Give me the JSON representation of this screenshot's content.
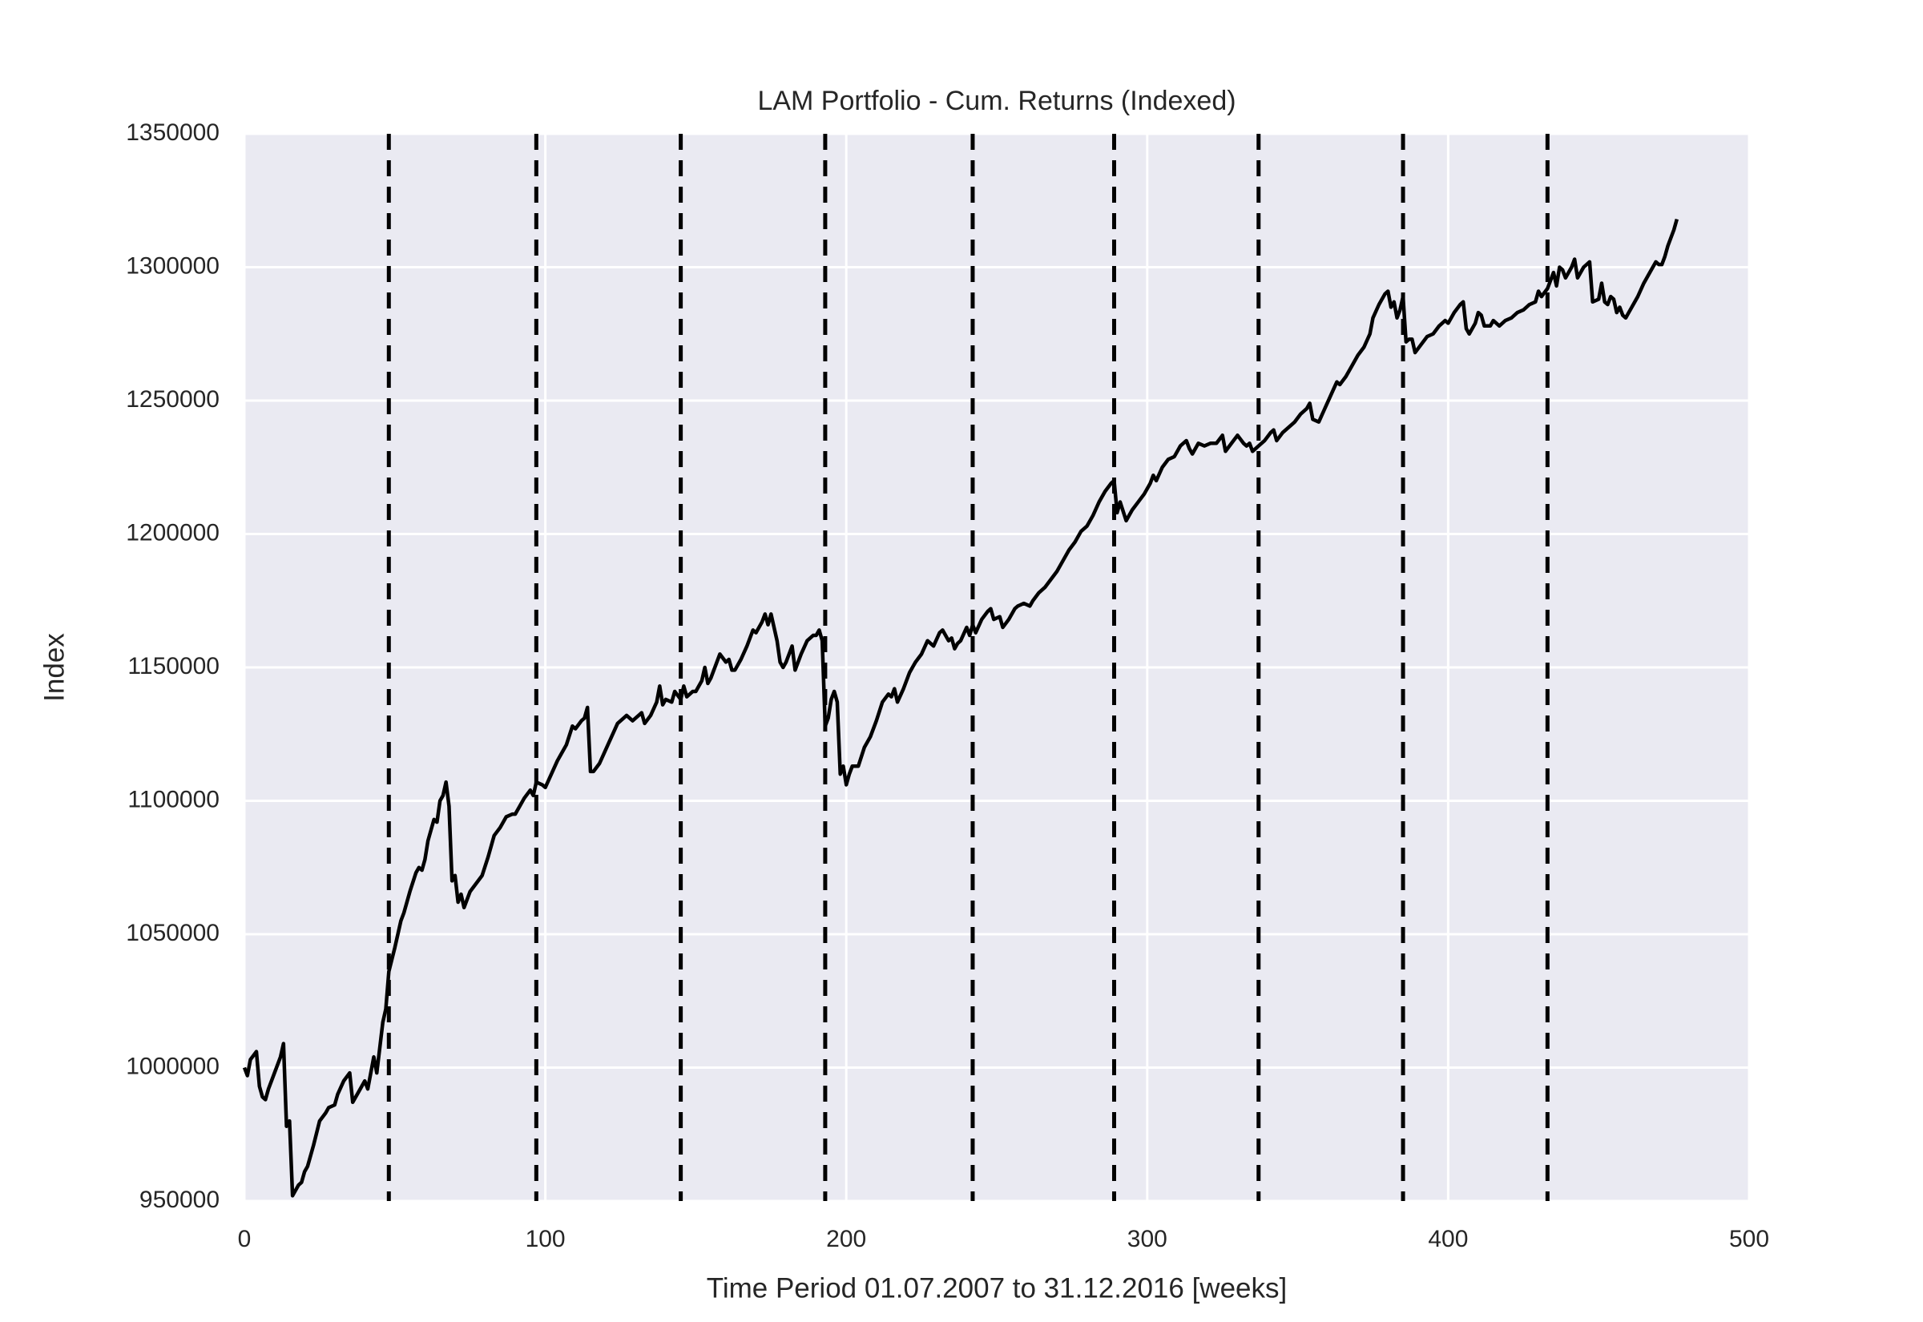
{
  "chart_data": {
    "type": "line",
    "title": "LAM Portfolio - Cum. Returns (Indexed)",
    "x_label": "Time Period 01.07.2007 to 31.12.2016 [weeks]",
    "y_label": "Index",
    "xlim": [
      0,
      500
    ],
    "xticks": [
      0,
      100,
      200,
      300,
      400,
      500
    ],
    "ylim": [
      950000,
      1350000
    ],
    "yticks": [
      950000,
      1000000,
      1050000,
      1100000,
      1150000,
      1200000,
      1250000,
      1300000,
      1350000
    ],
    "grid": true,
    "color": "#000000",
    "vline_color": "#000000",
    "vlines": [
      48,
      97,
      145,
      193,
      242,
      289,
      337,
      385,
      433
    ],
    "x": [
      0,
      1,
      2,
      4,
      5,
      6,
      7,
      8,
      10,
      12,
      13,
      14,
      15,
      16,
      17,
      18,
      19,
      20,
      21,
      23,
      25,
      27,
      28,
      30,
      31,
      33,
      35,
      36,
      38,
      40,
      41,
      43,
      44,
      46,
      47,
      48,
      50,
      52,
      53,
      55,
      57,
      58,
      59,
      60,
      61,
      63,
      64,
      65,
      66,
      67,
      68,
      69,
      70,
      71,
      72,
      73,
      74,
      75,
      77,
      79,
      81,
      83,
      85,
      87,
      89,
      90,
      91,
      93,
      95,
      96,
      97,
      99,
      100,
      102,
      104,
      105,
      107,
      109,
      110,
      112,
      113,
      114,
      115,
      116,
      118,
      120,
      122,
      124,
      126,
      127,
      129,
      131,
      132,
      133,
      135,
      137,
      138,
      139,
      140,
      142,
      143,
      145,
      146,
      147,
      149,
      150,
      152,
      153,
      154,
      155,
      157,
      158,
      160,
      161,
      162,
      163,
      165,
      167,
      169,
      170,
      172,
      173,
      174,
      175,
      177,
      178,
      179,
      180,
      182,
      183,
      185,
      187,
      189,
      190,
      191,
      192,
      193,
      194,
      195,
      196,
      197,
      198,
      199,
      200,
      201,
      202,
      204,
      206,
      208,
      210,
      212,
      214,
      215,
      216,
      217,
      219,
      221,
      223,
      225,
      227,
      229,
      231,
      232,
      234,
      235,
      236,
      237,
      238,
      240,
      241,
      242,
      243,
      245,
      247,
      248,
      249,
      251,
      252,
      254,
      256,
      257,
      259,
      261,
      262,
      264,
      266,
      268,
      270,
      272,
      274,
      276,
      278,
      280,
      282,
      284,
      286,
      288,
      289,
      290,
      291,
      293,
      295,
      297,
      299,
      301,
      302,
      303,
      305,
      307,
      309,
      311,
      313,
      314,
      315,
      317,
      319,
      321,
      323,
      325,
      326,
      328,
      330,
      332,
      333,
      334,
      335,
      337,
      339,
      341,
      342,
      343,
      345,
      347,
      349,
      351,
      353,
      354,
      355,
      357,
      359,
      361,
      363,
      364,
      366,
      368,
      370,
      372,
      374,
      375,
      377,
      379,
      380,
      381,
      382,
      383,
      384,
      385,
      386,
      387,
      388,
      389,
      391,
      393,
      395,
      397,
      399,
      400,
      402,
      404,
      405,
      406,
      407,
      409,
      410,
      411,
      412,
      414,
      415,
      417,
      419,
      421,
      423,
      425,
      427,
      429,
      430,
      431,
      433,
      434,
      435,
      436,
      437,
      438,
      439,
      441,
      442,
      443,
      445,
      447,
      448,
      450,
      451,
      452,
      453,
      454,
      455,
      456,
      457,
      458,
      459,
      461,
      463,
      465,
      467,
      469,
      470,
      471,
      472,
      473,
      474,
      475,
      476
    ],
    "values": [
      1000000,
      997000,
      1003000,
      1006000,
      993000,
      989000,
      988000,
      992000,
      998000,
      1004000,
      1009000,
      978000,
      980000,
      952000,
      954000,
      956000,
      957000,
      961000,
      963000,
      971000,
      980000,
      983000,
      985000,
      986000,
      990000,
      995000,
      998000,
      987000,
      991000,
      995000,
      992000,
      1004000,
      998000,
      1017000,
      1022000,
      1036000,
      1045000,
      1055000,
      1058000,
      1066000,
      1073000,
      1075000,
      1074000,
      1078000,
      1085000,
      1093000,
      1092000,
      1100000,
      1102000,
      1107000,
      1098000,
      1070000,
      1072000,
      1062000,
      1065000,
      1060000,
      1063000,
      1066000,
      1069000,
      1072000,
      1079000,
      1087000,
      1090000,
      1094000,
      1095000,
      1095000,
      1097000,
      1101000,
      1104000,
      1102000,
      1107000,
      1106000,
      1105000,
      1110000,
      1115000,
      1117000,
      1121000,
      1128000,
      1127000,
      1130000,
      1131000,
      1135000,
      1111000,
      1111000,
      1114000,
      1119000,
      1124000,
      1129000,
      1131000,
      1132000,
      1130000,
      1132000,
      1133000,
      1129000,
      1132000,
      1137000,
      1143000,
      1136000,
      1138000,
      1137000,
      1141000,
      1138000,
      1143000,
      1139000,
      1141000,
      1141000,
      1145000,
      1150000,
      1144000,
      1146000,
      1152000,
      1155000,
      1152000,
      1153000,
      1149000,
      1149000,
      1153000,
      1158000,
      1164000,
      1163000,
      1167000,
      1170000,
      1166000,
      1170000,
      1160000,
      1152000,
      1150000,
      1152000,
      1158000,
      1149000,
      1155000,
      1160000,
      1162000,
      1162000,
      1164000,
      1160000,
      1128000,
      1131000,
      1138000,
      1141000,
      1137000,
      1110000,
      1113000,
      1106000,
      1110000,
      1113000,
      1113000,
      1120000,
      1124000,
      1130000,
      1137000,
      1140000,
      1139000,
      1142000,
      1137000,
      1142000,
      1148000,
      1152000,
      1155000,
      1160000,
      1158000,
      1163000,
      1164000,
      1160000,
      1161000,
      1157000,
      1159000,
      1160000,
      1165000,
      1162000,
      1166000,
      1163000,
      1168000,
      1171000,
      1172000,
      1168000,
      1169000,
      1165000,
      1168000,
      1172000,
      1173000,
      1174000,
      1173000,
      1175000,
      1178000,
      1180000,
      1183000,
      1186000,
      1190000,
      1194000,
      1197000,
      1201000,
      1203000,
      1207000,
      1212000,
      1216000,
      1219000,
      1220000,
      1208000,
      1212000,
      1205000,
      1209000,
      1212000,
      1215000,
      1219000,
      1222000,
      1220000,
      1225000,
      1228000,
      1229000,
      1233000,
      1235000,
      1232000,
      1230000,
      1234000,
      1233000,
      1234000,
      1234000,
      1237000,
      1231000,
      1234000,
      1237000,
      1234000,
      1233000,
      1234000,
      1231000,
      1233000,
      1235000,
      1238000,
      1239000,
      1235000,
      1238000,
      1240000,
      1242000,
      1245000,
      1247000,
      1249000,
      1243000,
      1242000,
      1247000,
      1252000,
      1257000,
      1256000,
      1259000,
      1263000,
      1267000,
      1270000,
      1275000,
      1281000,
      1286000,
      1290000,
      1291000,
      1285000,
      1287000,
      1281000,
      1284000,
      1289000,
      1272000,
      1273000,
      1273000,
      1268000,
      1271000,
      1274000,
      1275000,
      1278000,
      1280000,
      1279000,
      1283000,
      1286000,
      1287000,
      1277000,
      1275000,
      1279000,
      1283000,
      1282000,
      1278000,
      1278000,
      1280000,
      1278000,
      1280000,
      1281000,
      1283000,
      1284000,
      1286000,
      1287000,
      1291000,
      1289000,
      1292000,
      1295000,
      1298000,
      1293000,
      1300000,
      1299000,
      1296000,
      1300000,
      1303000,
      1296000,
      1300000,
      1302000,
      1287000,
      1288000,
      1294000,
      1287000,
      1286000,
      1289000,
      1288000,
      1283000,
      1285000,
      1282000,
      1281000,
      1285000,
      1289000,
      1294000,
      1298000,
      1302000,
      1301000,
      1301000,
      1304000,
      1308000,
      1311000,
      1314000,
      1318000
    ]
  }
}
